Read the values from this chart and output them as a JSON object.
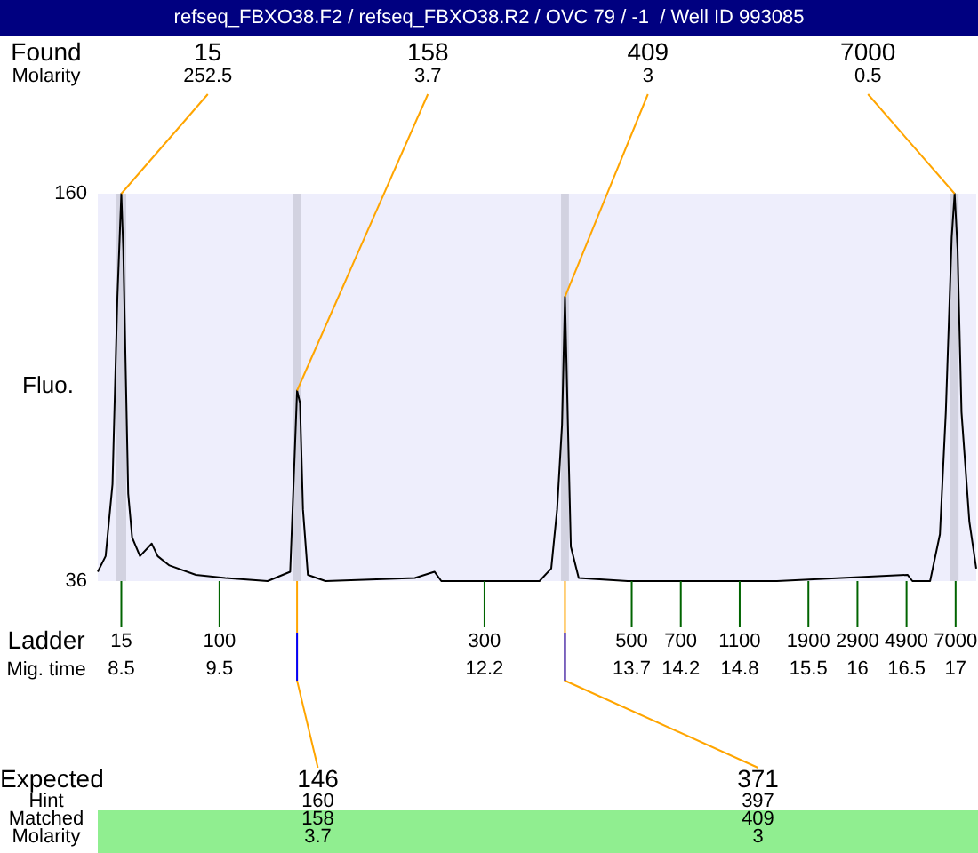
{
  "chart_data": {
    "type": "line",
    "title": "refseq_FBXO38.F2 / refseq_FBXO38.R2 / OVC 79 / -1  / Well ID 993085",
    "xlabel": "Mig. time",
    "ylabel": "Fluo.",
    "x": [
      8.26,
      8.34,
      8.41,
      8.46,
      8.5,
      8.52,
      8.57,
      8.61,
      8.69,
      8.81,
      8.87,
      8.99,
      9.26,
      9.56,
      9.99,
      10.22,
      10.27,
      10.29,
      10.32,
      10.35,
      10.4,
      10.58,
      11.49,
      11.69,
      11.76,
      12.3,
      12.76,
      12.88,
      12.94,
      12.99,
      13.02,
      13.05,
      13.08,
      13.16,
      13.66,
      15.18,
      16.51,
      16.56,
      16.74,
      16.84,
      16.9,
      16.96,
      16.99,
      17.02,
      17.06,
      17.14,
      17.21
    ],
    "series": [
      {
        "color": "#000000",
        "values": [
          39,
          44,
          67,
          127,
          160,
          142,
          64,
          50,
          44,
          48,
          44,
          41,
          38,
          37,
          36,
          39,
          80,
          97,
          93,
          59,
          38,
          36,
          37,
          39,
          36,
          36,
          36,
          40,
          59,
          86,
          127,
          86,
          47,
          37,
          36,
          36,
          38,
          36,
          36,
          51,
          90,
          146,
          160,
          142,
          90,
          55,
          40
        ]
      }
    ],
    "marker": "none",
    "xlim": [
      8.26,
      17.21
    ],
    "xticks": [
      8.5,
      9.5,
      12.2,
      13.7,
      14.2,
      14.8,
      15.5,
      16,
      16.5,
      17
    ],
    "ylim": [
      36,
      160
    ],
    "yticks": [
      36,
      160
    ],
    "bands": [
      {
        "axis": "x",
        "from": 8.45,
        "to": 8.55,
        "color": "#d2d2e0"
      },
      {
        "axis": "x",
        "from": 10.25,
        "to": 10.33,
        "color": "#d2d2e0"
      },
      {
        "axis": "x",
        "from": 12.98,
        "to": 13.06,
        "color": "#d2d2e0"
      },
      {
        "axis": "x",
        "from": 16.94,
        "to": 17.03,
        "color": "#d2d2e0"
      }
    ],
    "annotations": [
      "Found\nMolarity",
      {
        "text": "15\n252.5",
        "x": 8.5,
        "y": 160
      },
      {
        "text": "158\n3.7",
        "x": 10.29,
        "y": 97
      },
      {
        "text": "409\n3",
        "x": 13.02,
        "y": 127
      },
      {
        "text": "7000\n0.5",
        "x": 16.99,
        "y": 160
      },
      "Ladder",
      {
        "text": "15",
        "x": 8.5,
        "y": 36
      },
      {
        "text": "100",
        "x": 9.5,
        "y": 36
      },
      {
        "text": "300",
        "x": 12.2,
        "y": 36
      },
      {
        "text": "500",
        "x": 13.7,
        "y": 36
      },
      {
        "text": "700",
        "x": 14.2,
        "y": 36
      },
      {
        "text": "1100",
        "x": 14.8,
        "y": 36
      },
      {
        "text": "1900",
        "x": 15.5,
        "y": 36
      },
      {
        "text": "2900",
        "x": 16,
        "y": 36
      },
      {
        "text": "4900",
        "x": 16.5,
        "y": 36
      },
      {
        "text": "7000",
        "x": 17,
        "y": 36
      },
      "Expected\nHint\nMatched\nMolarity",
      {
        "text": "146\n160\n158\n3.7",
        "x": 10.29,
        "y": 36
      },
      {
        "text": "371\n397\n409\n3",
        "x": 13.02,
        "y": 36
      }
    ]
  }
}
